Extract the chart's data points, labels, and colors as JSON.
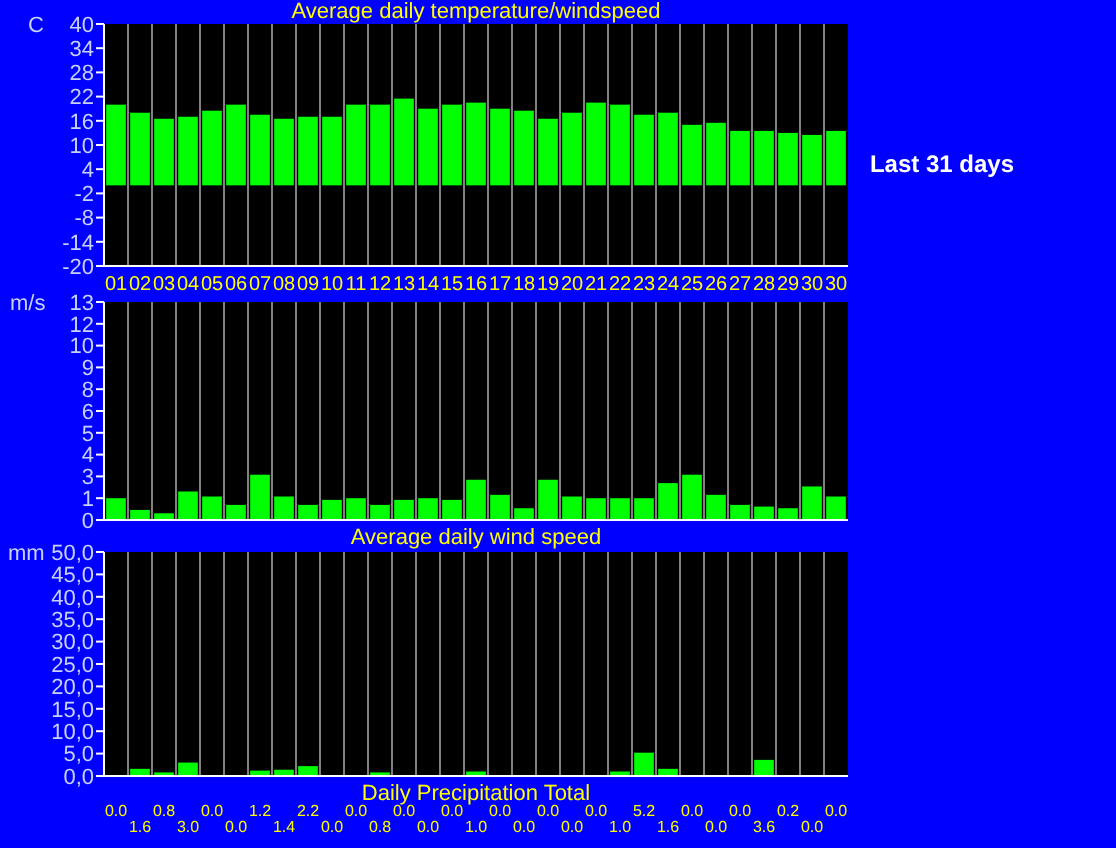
{
  "chart_data": [
    {
      "type": "bar",
      "title": "Average daily temperature/windspeed",
      "ylabel": "C",
      "categories": [
        "01",
        "02",
        "03",
        "04",
        "05",
        "06",
        "07",
        "08",
        "09",
        "10",
        "11",
        "12",
        "13",
        "14",
        "15",
        "16",
        "17",
        "18",
        "19",
        "20",
        "21",
        "22",
        "23",
        "24",
        "25",
        "26",
        "27",
        "28",
        "29",
        "30",
        "30"
      ],
      "values": [
        20,
        18,
        16.5,
        17,
        18.5,
        20,
        17.5,
        16.5,
        17,
        17,
        20,
        20,
        21.5,
        19,
        20,
        20.5,
        19,
        18.5,
        16.5,
        18,
        20.5,
        20,
        17.5,
        18,
        15,
        15.5,
        13.5,
        13.5,
        13,
        12.5,
        13.5
      ],
      "color": "#00ff00",
      "ylim": [
        -20,
        40
      ],
      "yticks": [
        -20,
        -14,
        -8,
        -2,
        4,
        10,
        16,
        22,
        28,
        34,
        40
      ],
      "grid": "x",
      "annotations": [
        "Last 31 days"
      ]
    },
    {
      "type": "bar",
      "xlabel": "Average daily wind speed",
      "ylabel": "m/s",
      "categories": [
        null,
        null,
        null,
        null,
        null,
        null,
        null,
        null,
        null,
        null,
        null,
        null,
        null,
        null,
        null,
        null,
        null,
        null,
        null,
        null,
        null,
        null,
        null,
        null,
        null,
        null,
        null,
        null,
        null,
        null,
        null
      ],
      "values": [
        1.3,
        0.6,
        0.4,
        1.7,
        1.4,
        0.9,
        2.7,
        1.4,
        0.9,
        1.2,
        1.3,
        0.9,
        1.2,
        1.3,
        1.2,
        2.4,
        1.5,
        0.7,
        2.4,
        1.4,
        1.3,
        1.3,
        1.3,
        2.2,
        2.7,
        1.5,
        0.9,
        0.8,
        0.7,
        2,
        1.4
      ],
      "color": "#00ff00",
      "ylim": [
        0,
        13
      ],
      "yticks": [
        0,
        {
          "value": 1.3,
          "label": "1"
        },
        {
          "value": 2.6,
          "label": "3"
        },
        {
          "value": 3.9,
          "label": "4"
        },
        {
          "value": 5.2,
          "label": "5"
        },
        {
          "value": 6.5,
          "label": "6"
        },
        {
          "value": 7.8,
          "label": "8"
        },
        {
          "value": 9.1,
          "label": "9"
        },
        {
          "value": 10.4,
          "label": "10"
        },
        {
          "value": 11.7,
          "label": "12"
        },
        13
      ],
      "grid": "x"
    },
    {
      "type": "bar",
      "xlabel": "Daily Precipitation Total",
      "ylabel": "mm",
      "categories": [
        null,
        null,
        null,
        null,
        null,
        null,
        null,
        null,
        null,
        null,
        null,
        null,
        null,
        null,
        null,
        null,
        null,
        null,
        null,
        null,
        null,
        null,
        null,
        null,
        null,
        null,
        null,
        null,
        null,
        null,
        null
      ],
      "values": [
        0,
        1.6,
        0.8,
        3,
        0,
        0,
        1.2,
        1.4,
        2.2,
        0,
        0,
        0.8,
        0,
        0,
        0,
        1,
        0,
        0,
        0,
        0,
        0,
        1,
        5.2,
        1.6,
        0,
        0,
        0,
        3.6,
        0.2,
        0,
        0
      ],
      "color": "#00ff00",
      "value_labels": [
        "0.0",
        "1.6",
        "0.8",
        "3.0",
        "0.0",
        "0.0",
        "1.2",
        "1.4",
        "2.2",
        "0.0",
        "0.0",
        "0.8",
        "0.0",
        "0.0",
        "0.0",
        "1.0",
        "0.0",
        "0.0",
        "0.0",
        "0.0",
        "0.0",
        "1.0",
        "5.2",
        "1.6",
        "0.0",
        "0.0",
        "0.0",
        "3.6",
        "0.2",
        "0.0",
        "0.0"
      ],
      "ylim": [
        0,
        50
      ],
      "yticks": [
        {
          "value": 0,
          "label": "0,0"
        },
        {
          "value": 5,
          "label": "5,0"
        },
        {
          "value": 10,
          "label": "10,0"
        },
        {
          "value": 15,
          "label": "15,0"
        },
        {
          "value": 20,
          "label": "20,0"
        },
        {
          "value": 25,
          "label": "25,0"
        },
        {
          "value": 30,
          "label": "30,0"
        },
        {
          "value": 35,
          "label": "35,0"
        },
        {
          "value": 40,
          "label": "40,0"
        },
        {
          "value": 45,
          "label": "45,0"
        },
        {
          "value": 50,
          "label": "50,0"
        }
      ],
      "grid": "x"
    }
  ]
}
